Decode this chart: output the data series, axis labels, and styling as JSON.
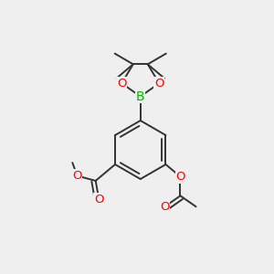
{
  "bg_color": "#efefef",
  "bond_color": "#333333",
  "bond_width": 1.4,
  "atom_colors": {
    "O": "#ff0000",
    "B": "#00bb00"
  },
  "figsize": [
    3.0,
    3.0
  ],
  "dpi": 100
}
